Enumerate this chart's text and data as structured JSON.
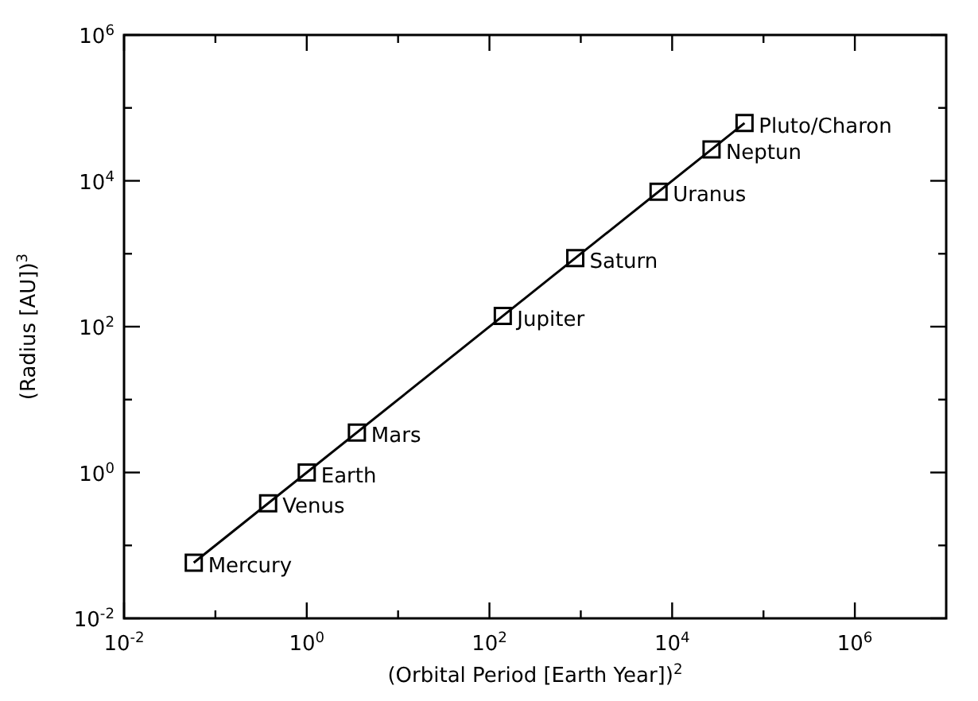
{
  "chart_data": {
    "type": "scatter",
    "xlabel": "(Orbital Period [Earth Year])$^{2}$",
    "ylabel": "(Radius [AU])$^{3}$",
    "log": "xy",
    "marker": "square",
    "grid": false,
    "xlim": [
      0.01,
      10000000
    ],
    "ylim": [
      0.01,
      1000000
    ],
    "xticks": [
      {
        "value": 0.01,
        "label": "10$^{-2}$"
      },
      {
        "value": 0.1,
        "label": null
      },
      {
        "value": 1,
        "label": "10$^{0}$"
      },
      {
        "value": 10,
        "label": null
      },
      {
        "value": 100,
        "label": "10$^{2}$"
      },
      {
        "value": 1000,
        "label": null
      },
      {
        "value": 10000,
        "label": "10$^{4}$"
      },
      {
        "value": 100000,
        "label": null
      },
      {
        "value": 1000000,
        "label": "10$^{6}$"
      }
    ],
    "yticks": [
      {
        "value": 0.01,
        "label": "10$^{-2}$"
      },
      {
        "value": 0.1,
        "label": null
      },
      {
        "value": 1,
        "label": "10$^{0}$"
      },
      {
        "value": 10,
        "label": null
      },
      {
        "value": 100,
        "label": "10$^{2}$"
      },
      {
        "value": 1000,
        "label": null
      },
      {
        "value": 10000,
        "label": "10$^{4}$"
      },
      {
        "value": 100000,
        "label": null
      },
      {
        "value": 1000000,
        "label": "10$^{6}$"
      }
    ],
    "series": [
      {
        "color": "#000000",
        "x": [
          0.058,
          0.378,
          1,
          3.54,
          140,
          870,
          7100,
          27000,
          62000
        ],
        "values": [
          0.058,
          0.378,
          1,
          3.54,
          140,
          870,
          7100,
          27000,
          62000
        ]
      },
      {
        "type": "line",
        "color": "#000000",
        "line_style": "solid",
        "marker": "none",
        "x": [
          0.058,
          62000
        ],
        "values": [
          0.058,
          62000
        ]
      }
    ],
    "annotations": [
      {
        "text": "Mercury",
        "x": 0.058,
        "y": 0.058
      },
      {
        "text": "Venus",
        "x": 0.378,
        "y": 0.378
      },
      {
        "text": "Earth",
        "x": 1,
        "y": 1
      },
      {
        "text": "Mars",
        "x": 3.54,
        "y": 3.54
      },
      {
        "text": "Jupiter",
        "x": 140,
        "y": 140
      },
      {
        "text": "Saturn",
        "x": 870,
        "y": 870
      },
      {
        "text": "Uranus",
        "x": 7100,
        "y": 7100
      },
      {
        "text": "Neptun",
        "x": 27000,
        "y": 27000
      },
      {
        "text": "Pluto/Charon",
        "x": 62000,
        "y": 62000
      }
    ]
  }
}
